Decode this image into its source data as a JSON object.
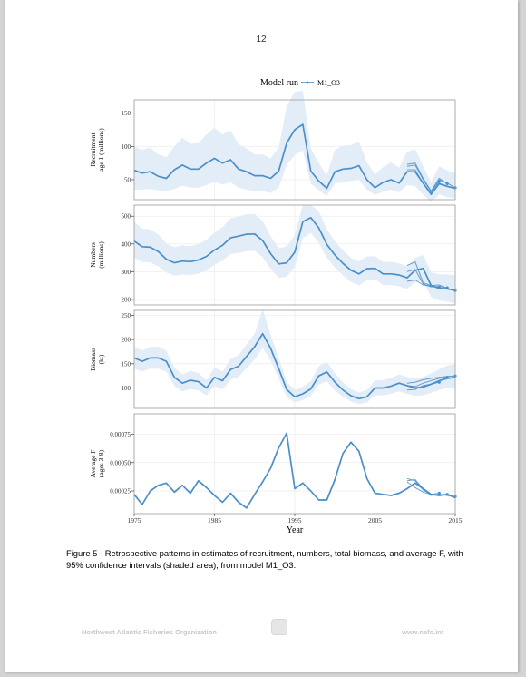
{
  "page": {
    "number": "12",
    "caption": "Figure 5 - Retrospective patterns in estimates of recruitment, numbers, total biomass, and average F, with 95% confidence intervals (shaded area), from model M1_O3.",
    "footer_left": "Northwest Atlantic Fisheries Organization",
    "footer_right": "www.nafo.int"
  },
  "colors": {
    "line": "#4a8fc9",
    "band": "#e3edf7",
    "grid": "#eeeeee",
    "panel_border": "#9a9a9a"
  },
  "chart_data": {
    "type": "line",
    "legend_title": "Model run",
    "legend_label": "M1_O3",
    "legend_position": "top",
    "xlabel": "Year",
    "xlim": [
      1975,
      2015
    ],
    "x_ticks": [
      1975,
      1985,
      1995,
      2005,
      2015
    ],
    "years": [
      1975,
      1976,
      1977,
      1978,
      1979,
      1980,
      1981,
      1982,
      1983,
      1984,
      1985,
      1986,
      1987,
      1988,
      1989,
      1990,
      1991,
      1992,
      1993,
      1994,
      1995,
      1996,
      1997,
      1998,
      1999,
      2000,
      2001,
      2002,
      2003,
      2004,
      2005,
      2006,
      2007,
      2008,
      2009,
      2010,
      2011,
      2012,
      2013,
      2014,
      2015
    ],
    "panels": [
      {
        "ylabel": [
          "Recruitment",
          "age 1 (millions)"
        ],
        "ylim": [
          20,
          170
        ],
        "y_ticks": [
          50,
          100,
          150
        ],
        "y_tick_labels": [
          "50",
          "100",
          "150"
        ],
        "values": [
          64,
          60,
          62,
          55,
          52,
          65,
          72,
          66,
          66,
          75,
          82,
          75,
          80,
          66,
          62,
          56,
          56,
          52,
          63,
          105,
          125,
          133,
          63,
          48,
          37,
          62,
          66,
          67,
          71,
          50,
          38,
          46,
          50,
          45,
          62,
          62,
          45,
          28,
          44,
          40,
          37
        ],
        "lower": [
          35,
          35,
          36,
          34,
          33,
          36,
          41,
          38,
          38,
          42,
          47,
          43,
          46,
          38,
          35,
          33,
          33,
          30,
          38,
          72,
          87,
          94,
          44,
          34,
          26,
          44,
          47,
          48,
          50,
          35,
          27,
          32,
          35,
          31,
          42,
          40,
          28,
          16,
          28,
          24,
          22
        ],
        "upper": [
          100,
          95,
          98,
          88,
          84,
          100,
          113,
          104,
          105,
          118,
          128,
          118,
          124,
          103,
          97,
          88,
          88,
          82,
          98,
          160,
          182,
          184,
          97,
          75,
          57,
          95,
          101,
          102,
          107,
          76,
          58,
          69,
          76,
          68,
          92,
          96,
          70,
          46,
          70,
          64,
          60
        ],
        "retro": [
          {
            "values": [
              65,
              65,
              44,
              30,
              47
            ],
            "marker": true
          },
          {
            "values": [
              73,
              75,
              52,
              33,
              52,
              44
            ],
            "marker": true
          },
          {
            "values": [
              70,
              72,
              50,
              32,
              50,
              45,
              38
            ],
            "marker": true
          }
        ]
      },
      {
        "ylabel": [
          "Numbers",
          "(millions)"
        ],
        "ylim": [
          180,
          540
        ],
        "y_ticks": [
          200,
          300,
          400,
          500
        ],
        "y_tick_labels": [
          "200",
          "300",
          "400",
          "500"
        ],
        "values": [
          410,
          390,
          388,
          372,
          345,
          332,
          338,
          336,
          342,
          355,
          378,
          395,
          422,
          428,
          435,
          436,
          412,
          365,
          328,
          332,
          370,
          480,
          495,
          458,
          398,
          360,
          330,
          305,
          292,
          311,
          312,
          292,
          292,
          288,
          278,
          305,
          312,
          250,
          240,
          238,
          232
        ],
        "lower": [
          350,
          335,
          333,
          320,
          297,
          285,
          290,
          288,
          293,
          305,
          325,
          340,
          364,
          368,
          374,
          375,
          352,
          310,
          278,
          282,
          316,
          420,
          440,
          405,
          350,
          315,
          287,
          263,
          250,
          270,
          272,
          252,
          252,
          247,
          238,
          262,
          268,
          208,
          196,
          192,
          185
        ],
        "upper": [
          480,
          455,
          452,
          434,
          402,
          388,
          395,
          392,
          400,
          414,
          441,
          460,
          492,
          499,
          507,
          508,
          482,
          428,
          385,
          390,
          432,
          540,
          540,
          518,
          453,
          410,
          377,
          350,
          336,
          355,
          356,
          335,
          335,
          330,
          320,
          350,
          360,
          298,
          290,
          290,
          287
        ],
        "retro": [
          {
            "values": [
              265,
              270,
              252,
              248,
              244
            ],
            "marker": true
          },
          {
            "values": [
              300,
              308,
              255,
              245,
              246,
              242
            ],
            "marker": true
          },
          {
            "values": [
              322,
              335,
              260,
              250,
              252,
              240,
              232
            ],
            "marker": true
          }
        ]
      },
      {
        "ylabel": [
          "Biomass",
          "(kt)"
        ],
        "ylim": [
          58,
          260
        ],
        "y_ticks": [
          100,
          150,
          200,
          250
        ],
        "y_tick_labels": [
          "100",
          "150",
          "200",
          "250"
        ],
        "values": [
          162,
          155,
          162,
          162,
          155,
          122,
          110,
          116,
          113,
          100,
          122,
          115,
          138,
          145,
          165,
          185,
          212,
          182,
          140,
          97,
          82,
          88,
          98,
          125,
          133,
          112,
          96,
          84,
          78,
          82,
          100,
          100,
          104,
          110,
          105,
          100,
          102,
          108,
          115,
          120,
          122
        ],
        "lower": [
          140,
          134,
          140,
          140,
          134,
          104,
          93,
          98,
          95,
          85,
          104,
          97,
          117,
          123,
          141,
          159,
          183,
          157,
          120,
          82,
          70,
          75,
          84,
          107,
          114,
          95,
          82,
          72,
          67,
          70,
          85,
          85,
          88,
          93,
          88,
          84,
          85,
          90,
          96,
          100,
          101
        ],
        "upper": [
          185,
          177,
          185,
          185,
          177,
          142,
          128,
          135,
          131,
          116,
          142,
          134,
          160,
          168,
          190,
          212,
          262,
          210,
          162,
          113,
          96,
          103,
          114,
          145,
          154,
          130,
          112,
          98,
          91,
          96,
          116,
          116,
          121,
          128,
          123,
          119,
          123,
          130,
          139,
          146,
          150
        ],
        "retro": [
          {
            "values": [
              96,
              97,
              105,
              108,
              112
            ],
            "marker": true
          },
          {
            "values": [
              105,
              103,
              110,
              115,
              120,
              122
            ],
            "marker": true
          },
          {
            "values": [
              110,
              112,
              117,
              120,
              122,
              124,
              125
            ],
            "marker": true
          }
        ]
      },
      {
        "ylabel": [
          "Average F",
          "(ages 3-8)"
        ],
        "ylim": [
          5e-05,
          0.00093
        ],
        "y_ticks": [
          0.00025,
          0.0005,
          0.00075
        ],
        "y_tick_labels": [
          "0.00025",
          "0.00050",
          "0.00075"
        ],
        "values": [
          0.00022,
          0.00013,
          0.00025,
          0.0003,
          0.00032,
          0.00024,
          0.0003,
          0.00023,
          0.00034,
          0.00028,
          0.00021,
          0.00015,
          0.00023,
          0.00015,
          0.0001,
          0.00022,
          0.00033,
          0.00045,
          0.00063,
          0.00076,
          0.00027,
          0.00032,
          0.00025,
          0.00017,
          0.00017,
          0.00035,
          0.00058,
          0.00068,
          0.0006,
          0.00036,
          0.00023,
          0.00022,
          0.00021,
          0.00023,
          0.00027,
          0.00032,
          0.00027,
          0.00022,
          0.00021,
          0.00022,
          0.00019
        ],
        "retro": [
          {
            "values": [
              0.00033,
              0.00028,
              0.00024,
              0.00022,
              0.00023
            ],
            "marker": true
          },
          {
            "values": [
              0.00036,
              0.00034,
              0.00026,
              0.00022,
              0.00021,
              0.00022
            ],
            "marker": true
          },
          {
            "values": [
              0.00034,
              0.00035,
              0.00027,
              0.00021,
              0.00022,
              0.00021,
              0.0002
            ],
            "marker": true
          }
        ]
      }
    ]
  }
}
